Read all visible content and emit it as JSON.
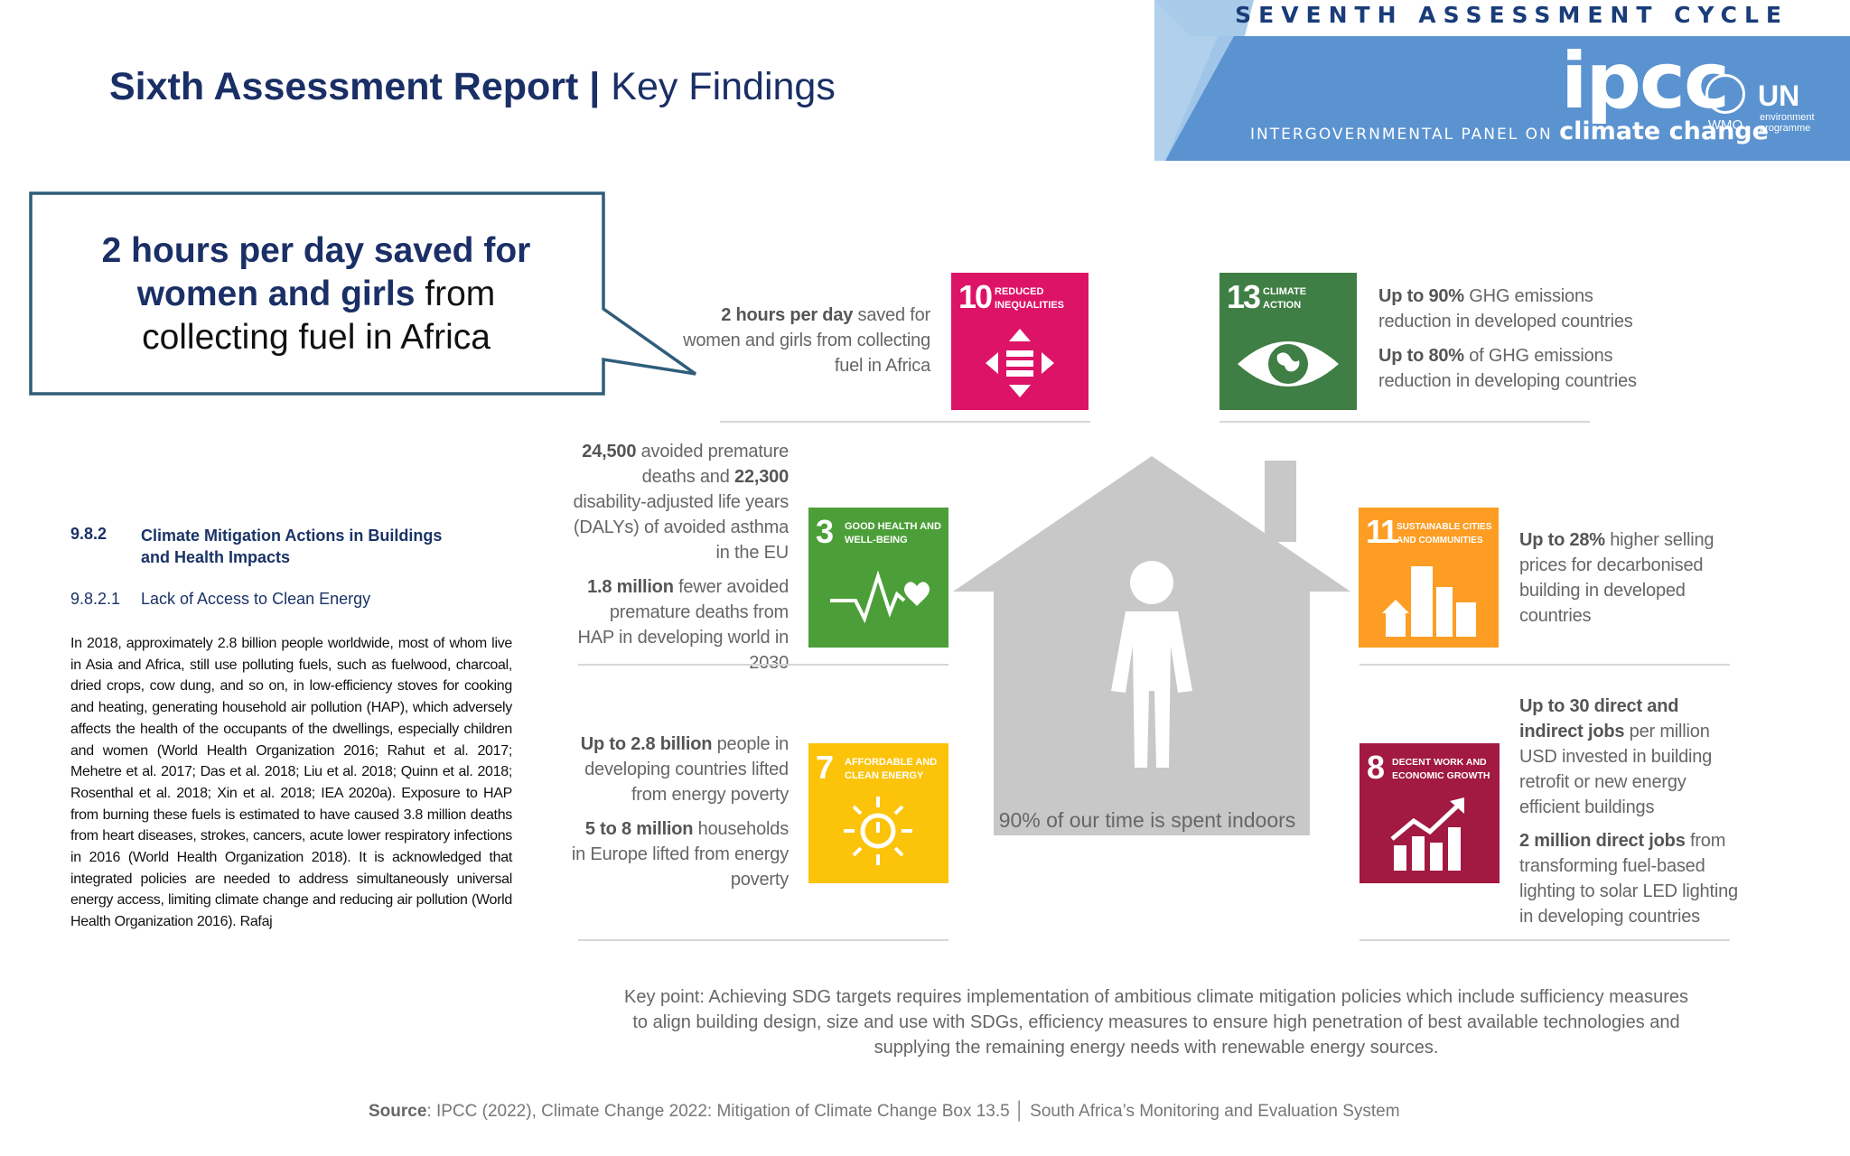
{
  "header": {
    "title_bold": "Sixth Assessment Report | ",
    "title_rest": "Key Findings"
  },
  "banner": {
    "cycle": "SEVENTH ASSESSMENT CYCLE",
    "logo": "ipcc",
    "panel_text": "INTERGOVERNMENTAL PANEL ON ",
    "panel_cc": "climate change",
    "wmo": "WMO",
    "un": "UN",
    "unep_line1": "environment",
    "unep_line2": "programme",
    "colors": {
      "light": "#a9cbea",
      "main": "#5b93d1"
    }
  },
  "callout": {
    "bold": "2 hours per day saved for women and girls",
    "rest": " from collecting fuel in Africa"
  },
  "report": {
    "section_number": "9.8.2",
    "section_title": "Climate Mitigation Actions in Buildings and Health Impacts",
    "subsection_number": "9.8.2.1",
    "subsection_title": "Lack of Access to Clean Energy",
    "body": "In 2018, approximately 2.8 billion people worldwide, most of whom live in Asia and Africa, still use polluting fuels, such as fuelwood, charcoal, dried crops, cow dung, and so on, in low-efficiency stoves for cooking and heating, generating household air pollution (HAP), which adversely affects the health of the occupants of the dwellings, especially children and women (World Health Organization 2016; Rahut et al. 2017; Mehetre et al. 2017; Das et al. 2018; Liu et al. 2018; Quinn et al. 2018; Rosenthal et al. 2018; Xin et al. 2018; IEA 2020a). Exposure to HAP from burning these fuels is estimated to have caused 3.8 million deaths from heart diseases, strokes, cancers, acute lower respiratory infections in 2016 (World Health Organization 2018). It is acknowledged that integrated policies are needed to address simultaneously universal energy access, limiting climate change and reducing air pollution (World Health Organization 2016). Rafaj"
  },
  "infographic": {
    "sdg10": {
      "number": "10",
      "label": "REDUCED INEQUALITIES",
      "color": "#dd1367"
    },
    "sdg13": {
      "number": "13",
      "label": "CLIMATE ACTION",
      "color": "#3f7e44"
    },
    "sdg3": {
      "number": "3",
      "label": "GOOD HEALTH AND WELL-BEING",
      "color": "#4c9f38"
    },
    "sdg11": {
      "number": "11",
      "label": "SUSTAINABLE CITIES AND COMMUNITIES",
      "color": "#fd9d24"
    },
    "sdg7": {
      "number": "7",
      "label": "AFFORDABLE AND CLEAN ENERGY",
      "color": "#fcc30b"
    },
    "sdg8": {
      "number": "8",
      "label": "DECENT WORK AND ECONOMIC GROWTH",
      "color": "#a21942"
    },
    "t10_b": "2 hours per day",
    "t10_r": " saved for women and girls from collecting fuel in Africa",
    "t13a_b": "Up to 90%",
    "t13a_r": " GHG emissions reduction in developed countries",
    "t13b_b": "Up to 80%",
    "t13b_r": " of GHG emissions reduction in developing countries",
    "t3a_b1": "24,500",
    "t3a_r1": " avoided premature deaths and ",
    "t3a_b2": "22,300",
    "t3a_r2": " disability-adjusted life years (DALYs) of avoided asthma in the EU",
    "t3b_b": "1.8 million",
    "t3b_r": " fewer avoided premature deaths from HAP in developing world in 2030",
    "t11_b": "Up to 28%",
    "t11_r": " higher selling prices for decarbonised building in developed countries",
    "t7a_b": "Up to 2.8 billion",
    "t7a_r": " people in developing countries lifted from energy poverty",
    "t7b_b": "5 to 8 million",
    "t7b_r": " households in Europe lifted from energy poverty",
    "t8a_b": "Up to 30 direct and indirect jobs",
    "t8a_r": " per million USD invested in building retrofit or new energy efficient buildings",
    "t8b_b": "2 million direct jobs",
    "t8b_r": " from transforming fuel-based lighting to solar LED lighting in developing countries",
    "house_caption": "90% of our time is spent indoors",
    "key_point": "Key point: Achieving SDG targets requires implementation of ambitious climate mitigation policies which include sufficiency measures to align building design, size and use with SDGs, efficiency measures to ensure high penetration of best available technologies and supplying the remaining energy needs with renewable energy sources."
  },
  "footer": {
    "source_label": "Source",
    "source_text": ": IPCC (2022), Climate Change 2022: Mitigation of Climate Change Box 13.5 │ South Africa’s Monitoring and Evaluation System"
  }
}
